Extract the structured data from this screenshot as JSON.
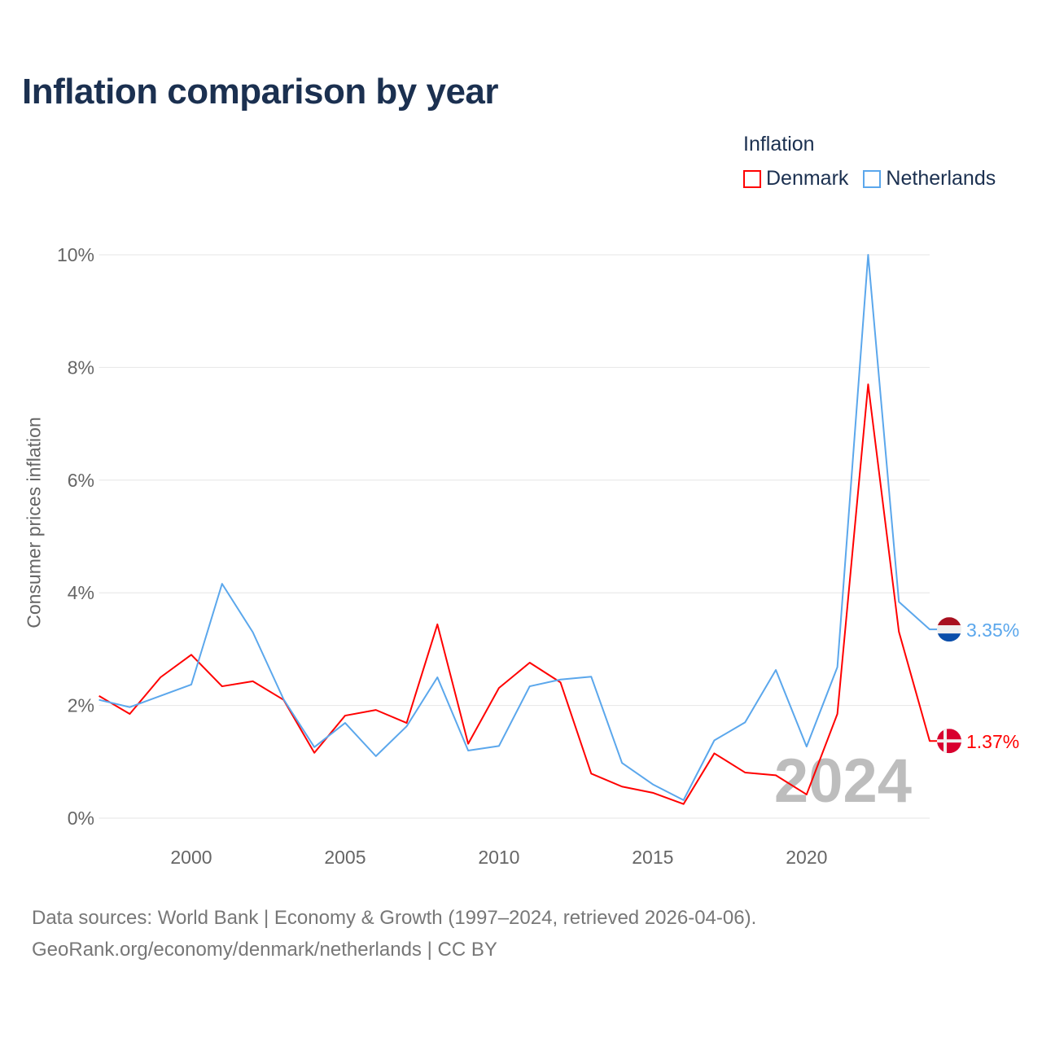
{
  "title": "Inflation comparison by year",
  "legend": {
    "title": "Inflation",
    "items": [
      "Denmark",
      "Netherlands"
    ]
  },
  "source": {
    "line1": "Data sources: World Bank | Economy & Growth (1997–2024, retrieved 2026-04-06).",
    "line2": "GeoRank.org/economy/denmark/netherlands | CC BY"
  },
  "chart_data": {
    "type": "line",
    "title": "Inflation comparison by year",
    "xlabel": "",
    "ylabel": "Consumer prices inflation",
    "xlim": [
      1997,
      2024
    ],
    "ylim": [
      0,
      10
    ],
    "yticks": [
      0,
      2,
      4,
      6,
      8,
      10
    ],
    "ytick_labels": [
      "0%",
      "2%",
      "4%",
      "6%",
      "8%",
      "10%"
    ],
    "xticks": [
      2000,
      2005,
      2010,
      2015,
      2020
    ],
    "xtick_labels": [
      "2000",
      "2005",
      "2010",
      "2015",
      "2020"
    ],
    "grid": true,
    "legend_placement": "top-right",
    "watermark": "2024",
    "x": [
      1997,
      1998,
      1999,
      2000,
      2001,
      2002,
      2003,
      2004,
      2005,
      2006,
      2007,
      2008,
      2009,
      2010,
      2011,
      2012,
      2013,
      2014,
      2015,
      2016,
      2017,
      2018,
      2019,
      2020,
      2021,
      2022,
      2023,
      2024
    ],
    "series": [
      {
        "name": "Denmark",
        "color": "#ff0000",
        "end_label": "1.37%",
        "values": [
          2.17,
          1.85,
          2.5,
          2.9,
          2.34,
          2.43,
          2.1,
          1.16,
          1.82,
          1.92,
          1.69,
          3.44,
          1.32,
          2.31,
          2.76,
          2.41,
          0.79,
          0.56,
          0.45,
          0.25,
          1.15,
          0.81,
          0.76,
          0.42,
          1.85,
          7.7,
          3.31,
          1.37
        ]
      },
      {
        "name": "Netherlands",
        "color": "#5ba7ec",
        "end_label": "3.35%",
        "values": [
          2.1,
          1.97,
          2.17,
          2.37,
          4.16,
          3.3,
          2.11,
          1.26,
          1.69,
          1.1,
          1.63,
          2.5,
          1.2,
          1.28,
          2.34,
          2.46,
          2.51,
          0.98,
          0.6,
          0.32,
          1.38,
          1.7,
          2.63,
          1.27,
          2.68,
          10.0,
          3.84,
          3.35
        ]
      }
    ]
  }
}
